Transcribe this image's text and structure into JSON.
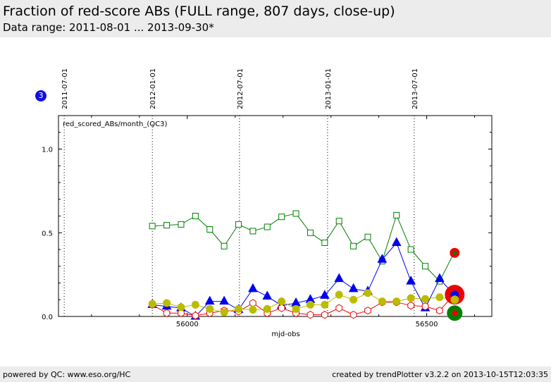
{
  "header": {
    "title": "Fraction of red-score ABs (FULL range, 807 days, close-up)",
    "subtitle": "Data range: 2011-08-01 ... 2013-09-30*"
  },
  "footer": {
    "left": "powered by QC: www.eso.org/HC",
    "right": "created by trendPlotter v3.2.2 on 2013-10-15T12:03:35"
  },
  "badge": {
    "label": "3",
    "color": "#1010e0"
  },
  "chart_data": {
    "type": "line",
    "inner_label": "red_scored_ABs/month_(QC3)",
    "xlabel": "mjd-obs",
    "ylabel": "",
    "xlim": [
      55731,
      56636
    ],
    "ylim": [
      0,
      1.2
    ],
    "x_ticks": [
      56000,
      56500
    ],
    "y_ticks": [
      0.0,
      0.5,
      1.0
    ],
    "y_tick_labels": [
      "0.0",
      "0.5",
      "1.0"
    ],
    "grid": false,
    "date_markers": [
      {
        "x": 55743,
        "label": "2011-07-01"
      },
      {
        "x": 55927,
        "label": "2012-01-01"
      },
      {
        "x": 56109,
        "label": "2012-07-01"
      },
      {
        "x": 56293,
        "label": "2013-01-01"
      },
      {
        "x": 56474,
        "label": "2013-07-01"
      }
    ],
    "series": [
      {
        "marker": "open-square",
        "color": "#008000",
        "points": [
          [
            55927,
            0.54
          ],
          [
            55957,
            0.545
          ],
          [
            55987,
            0.55
          ],
          [
            56017,
            0.6
          ],
          [
            56047,
            0.52
          ],
          [
            56077,
            0.42
          ],
          [
            56107,
            0.55
          ],
          [
            56137,
            0.51
          ],
          [
            56167,
            0.535
          ],
          [
            56197,
            0.595
          ],
          [
            56227,
            0.615
          ],
          [
            56257,
            0.5
          ],
          [
            56287,
            0.44
          ],
          [
            56317,
            0.57
          ],
          [
            56347,
            0.42
          ],
          [
            56377,
            0.475
          ],
          [
            56407,
            0.33
          ],
          [
            56437,
            0.605
          ],
          [
            56467,
            0.4
          ],
          [
            56497,
            0.3
          ],
          [
            56527,
            0.21
          ],
          [
            56557,
            0.38
          ]
        ]
      },
      {
        "marker": "filled-triangle",
        "color": "#0000ee",
        "points": [
          [
            55927,
            0.07
          ],
          [
            55957,
            0.06
          ],
          [
            55987,
            0.05
          ],
          [
            56017,
            0.0
          ],
          [
            56047,
            0.09
          ],
          [
            56077,
            0.09
          ],
          [
            56107,
            0.04
          ],
          [
            56137,
            0.165
          ],
          [
            56167,
            0.12
          ],
          [
            56197,
            0.065
          ],
          [
            56227,
            0.08
          ],
          [
            56257,
            0.1
          ],
          [
            56287,
            0.125
          ],
          [
            56317,
            0.225
          ],
          [
            56347,
            0.165
          ],
          [
            56377,
            0.15
          ],
          [
            56407,
            0.34
          ],
          [
            56437,
            0.44
          ],
          [
            56467,
            0.21
          ],
          [
            56497,
            0.05
          ],
          [
            56527,
            0.225
          ],
          [
            56557,
            0.13
          ]
        ]
      },
      {
        "marker": "open-hexagon",
        "color": "#ee0000",
        "points": [
          [
            55927,
            0.07
          ],
          [
            55957,
            0.02
          ],
          [
            55987,
            0.02
          ],
          [
            56017,
            0.005
          ],
          [
            56047,
            0.02
          ],
          [
            56077,
            0.035
          ],
          [
            56107,
            0.03
          ],
          [
            56137,
            0.08
          ],
          [
            56167,
            0.02
          ],
          [
            56197,
            0.05
          ],
          [
            56227,
            0.02
          ],
          [
            56257,
            0.01
          ],
          [
            56287,
            0.01
          ],
          [
            56317,
            0.05
          ],
          [
            56347,
            0.01
          ],
          [
            56377,
            0.035
          ],
          [
            56407,
            0.085
          ],
          [
            56437,
            0.085
          ],
          [
            56467,
            0.065
          ],
          [
            56497,
            0.06
          ],
          [
            56527,
            0.035
          ],
          [
            56557,
            0.13
          ]
        ]
      },
      {
        "marker": "filled-circle",
        "color": "#bbbb00",
        "points": [
          [
            55927,
            0.075
          ],
          [
            55957,
            0.08
          ],
          [
            55987,
            0.055
          ],
          [
            56017,
            0.07
          ],
          [
            56047,
            0.045
          ],
          [
            56077,
            0.025
          ],
          [
            56107,
            0.045
          ],
          [
            56137,
            0.04
          ],
          [
            56167,
            0.045
          ],
          [
            56197,
            0.09
          ],
          [
            56227,
            0.045
          ],
          [
            56257,
            0.07
          ],
          [
            56287,
            0.07
          ],
          [
            56317,
            0.13
          ],
          [
            56347,
            0.1
          ],
          [
            56377,
            0.14
          ],
          [
            56407,
            0.09
          ],
          [
            56437,
            0.09
          ],
          [
            56467,
            0.11
          ],
          [
            56497,
            0.105
          ],
          [
            56527,
            0.115
          ],
          [
            56557,
            0.1
          ]
        ]
      }
    ],
    "latest_markers": [
      {
        "x": 56557,
        "y": 0.38,
        "size": 7,
        "color": "#ee0000"
      },
      {
        "x": 56557,
        "y": 0.38,
        "size": 3,
        "color": "#008000"
      },
      {
        "x": 56557,
        "y": 0.13,
        "size": 14,
        "color": "#ee0000"
      },
      {
        "x": 56557,
        "y": 0.13,
        "size": 6,
        "color": "#0000ee"
      },
      {
        "x": 56557,
        "y": 0.1,
        "size": 6,
        "color": "#bbbb00"
      },
      {
        "x": 56557,
        "y": 0.02,
        "size": 11,
        "color": "#008000"
      },
      {
        "x": 56557,
        "y": 0.02,
        "size": 4,
        "color": "#ee0000"
      }
    ]
  }
}
